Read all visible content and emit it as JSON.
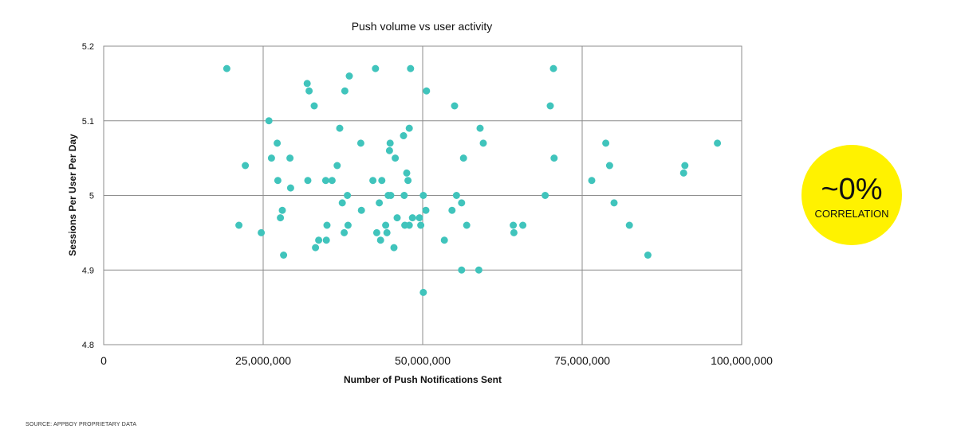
{
  "chart_data": {
    "type": "scatter",
    "title": "Push volume vs user activity",
    "xlabel": "Number of Push Notifications Sent",
    "ylabel": "Sessions Per User Per Day",
    "xlim": [
      0,
      100000000
    ],
    "ylim": [
      4.8,
      5.2
    ],
    "x_ticks": [
      0,
      25000000,
      50000000,
      75000000,
      100000000
    ],
    "x_tick_labels": [
      "0",
      "25,000,000",
      "50,000,000",
      "75,000,000",
      "100,000,000"
    ],
    "y_ticks": [
      4.8,
      4.9,
      5.0,
      5.1,
      5.2
    ],
    "y_tick_labels": [
      "4.8",
      "4.9",
      "5",
      "5.1",
      "5.2"
    ],
    "grid": true,
    "point_color": "#40c4bc",
    "points": [
      [
        19300000,
        5.17
      ],
      [
        21200000,
        4.96
      ],
      [
        22200000,
        5.04
      ],
      [
        24700000,
        4.95
      ],
      [
        25900000,
        5.1
      ],
      [
        26300000,
        5.05
      ],
      [
        27200000,
        5.07
      ],
      [
        27300000,
        5.02
      ],
      [
        27700000,
        4.97
      ],
      [
        28000000,
        4.98
      ],
      [
        28200000,
        4.92
      ],
      [
        29200000,
        5.05
      ],
      [
        29300000,
        5.01
      ],
      [
        31900000,
        5.15
      ],
      [
        32000000,
        5.02
      ],
      [
        32200000,
        5.14
      ],
      [
        33000000,
        5.12
      ],
      [
        33200000,
        4.93
      ],
      [
        33700000,
        4.94
      ],
      [
        34800000,
        5.02
      ],
      [
        34900000,
        4.94
      ],
      [
        35000000,
        4.96
      ],
      [
        35800000,
        5.02
      ],
      [
        36600000,
        5.04
      ],
      [
        37000000,
        5.09
      ],
      [
        37400000,
        4.99
      ],
      [
        37700000,
        4.95
      ],
      [
        37800000,
        5.14
      ],
      [
        38200000,
        5.0
      ],
      [
        38300000,
        4.96
      ],
      [
        38500000,
        5.16
      ],
      [
        40300000,
        5.07
      ],
      [
        40400000,
        4.98
      ],
      [
        42200000,
        5.02
      ],
      [
        42600000,
        5.17
      ],
      [
        42800000,
        4.95
      ],
      [
        43200000,
        4.99
      ],
      [
        43400000,
        4.94
      ],
      [
        43600000,
        5.02
      ],
      [
        44200000,
        4.96
      ],
      [
        44400000,
        4.95
      ],
      [
        44600000,
        5.0
      ],
      [
        44800000,
        5.06
      ],
      [
        44900000,
        5.07
      ],
      [
        45000000,
        5.0
      ],
      [
        45500000,
        4.93
      ],
      [
        45700000,
        5.05
      ],
      [
        46000000,
        4.97
      ],
      [
        47000000,
        5.08
      ],
      [
        47100000,
        5.0
      ],
      [
        47200000,
        4.96
      ],
      [
        47500000,
        5.03
      ],
      [
        47700000,
        5.02
      ],
      [
        47900000,
        5.09
      ],
      [
        47900000,
        4.96
      ],
      [
        48100000,
        5.17
      ],
      [
        48400000,
        4.97
      ],
      [
        49500000,
        4.97
      ],
      [
        49700000,
        4.96
      ],
      [
        50100000,
        5.0
      ],
      [
        50100000,
        4.87
      ],
      [
        50500000,
        4.98
      ],
      [
        50600000,
        5.14
      ],
      [
        53400000,
        4.94
      ],
      [
        54600000,
        4.98
      ],
      [
        55000000,
        5.12
      ],
      [
        55300000,
        5.0
      ],
      [
        56100000,
        4.99
      ],
      [
        56100000,
        4.9
      ],
      [
        56400000,
        5.05
      ],
      [
        56900000,
        4.96
      ],
      [
        58800000,
        4.9
      ],
      [
        59000000,
        5.09
      ],
      [
        59500000,
        5.07
      ],
      [
        64200000,
        4.96
      ],
      [
        64300000,
        4.95
      ],
      [
        65700000,
        4.96
      ],
      [
        69200000,
        5.0
      ],
      [
        70000000,
        5.12
      ],
      [
        70500000,
        5.17
      ],
      [
        70600000,
        5.05
      ],
      [
        76500000,
        5.02
      ],
      [
        78700000,
        5.07
      ],
      [
        79300000,
        5.04
      ],
      [
        80000000,
        4.99
      ],
      [
        82400000,
        4.96
      ],
      [
        85300000,
        4.92
      ],
      [
        90900000,
        5.03
      ],
      [
        91100000,
        5.04
      ],
      [
        96200000,
        5.07
      ]
    ]
  },
  "annotation": {
    "big_text": "~0%",
    "small_text": "CORRELATION",
    "color": "#fff200"
  },
  "source": "SOURCE: APPBOY PROPRIETARY DATA"
}
